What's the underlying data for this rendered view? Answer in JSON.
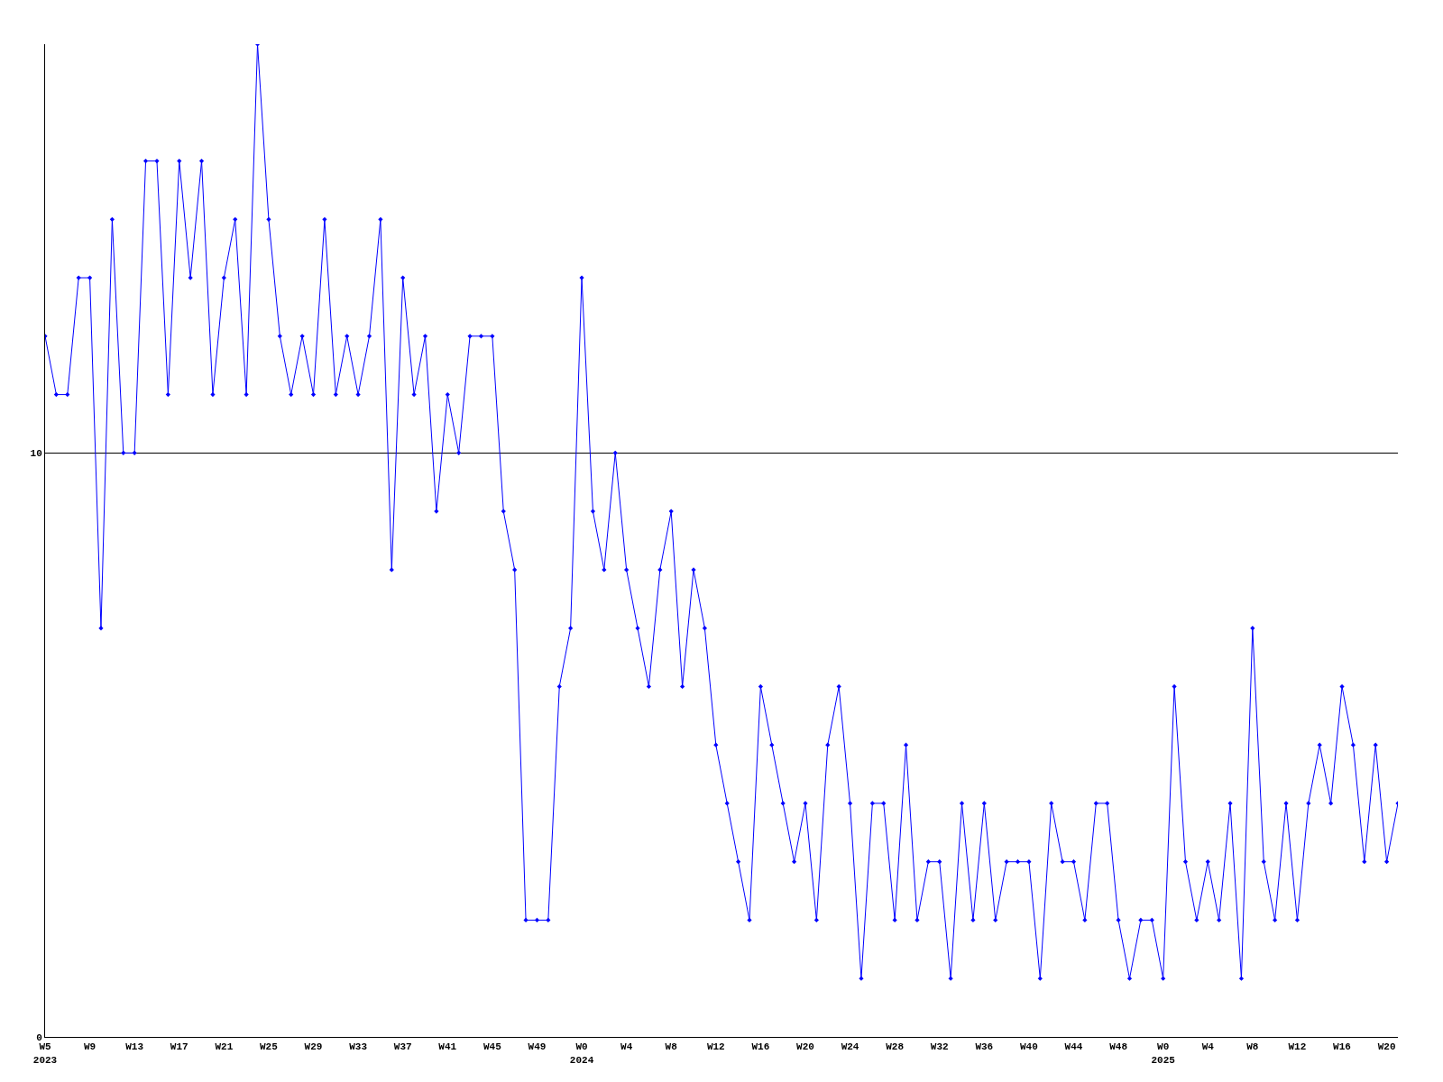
{
  "chart_data": {
    "type": "line",
    "categories": [
      "W5\n2023",
      null,
      null,
      null,
      "W9",
      null,
      null,
      null,
      "W13",
      null,
      null,
      null,
      "W17",
      null,
      null,
      null,
      "W21",
      null,
      null,
      null,
      "W25",
      null,
      null,
      null,
      "W29",
      null,
      null,
      null,
      "W33",
      null,
      null,
      null,
      "W37",
      null,
      null,
      null,
      "W41",
      null,
      null,
      null,
      "W45",
      null,
      null,
      null,
      "W49",
      null,
      null,
      null,
      "W0\n2024",
      null,
      null,
      null,
      "W4",
      null,
      null,
      null,
      "W8",
      null,
      null,
      null,
      "W12",
      null,
      null,
      null,
      "W16",
      null,
      null,
      null,
      "W20",
      null,
      null,
      null,
      "W24",
      null,
      null,
      null,
      "W28",
      null,
      null,
      null,
      "W32",
      null,
      null,
      null,
      "W36",
      null,
      null,
      null,
      "W40",
      null,
      null,
      null,
      "W44",
      null,
      null,
      null,
      "W48",
      null,
      null,
      null,
      "W0\n2025",
      null,
      null,
      null,
      "W4",
      null,
      null,
      null,
      "W8",
      null,
      null,
      null,
      "W12",
      null,
      null,
      null,
      "W16",
      null,
      null,
      null,
      "W20",
      null
    ],
    "series": [
      {
        "color": "#0000ff",
        "values": [
          12,
          11,
          11,
          13,
          13,
          7,
          14,
          10,
          10,
          15,
          15,
          11,
          15,
          13,
          15,
          11,
          13,
          14,
          11,
          17,
          14,
          12,
          11,
          12,
          11,
          14,
          11,
          12,
          11,
          12,
          14,
          8,
          13,
          11,
          12,
          9,
          11,
          10,
          12,
          12,
          12,
          9,
          8,
          2,
          2,
          2,
          6,
          7,
          13,
          9,
          8,
          10,
          8,
          7,
          6,
          8,
          9,
          6,
          8,
          7,
          5,
          4,
          3,
          2,
          6,
          5,
          4,
          3,
          4,
          2,
          5,
          6,
          4,
          1,
          4,
          4,
          2,
          5,
          2,
          3,
          3,
          1,
          4,
          2,
          4,
          2,
          3,
          3,
          3,
          1,
          4,
          3,
          3,
          2,
          4,
          4,
          2,
          1,
          2,
          2,
          1,
          6,
          3,
          2,
          3,
          2,
          4,
          1,
          7,
          3,
          2,
          4,
          2,
          4,
          5,
          4,
          6,
          5,
          3,
          5,
          3,
          4
        ]
      }
    ],
    "ylim": [
      0,
      17
    ],
    "yticks": [
      0,
      10
    ],
    "grid": "y",
    "marker": "diamond",
    "line_style": "solid"
  }
}
